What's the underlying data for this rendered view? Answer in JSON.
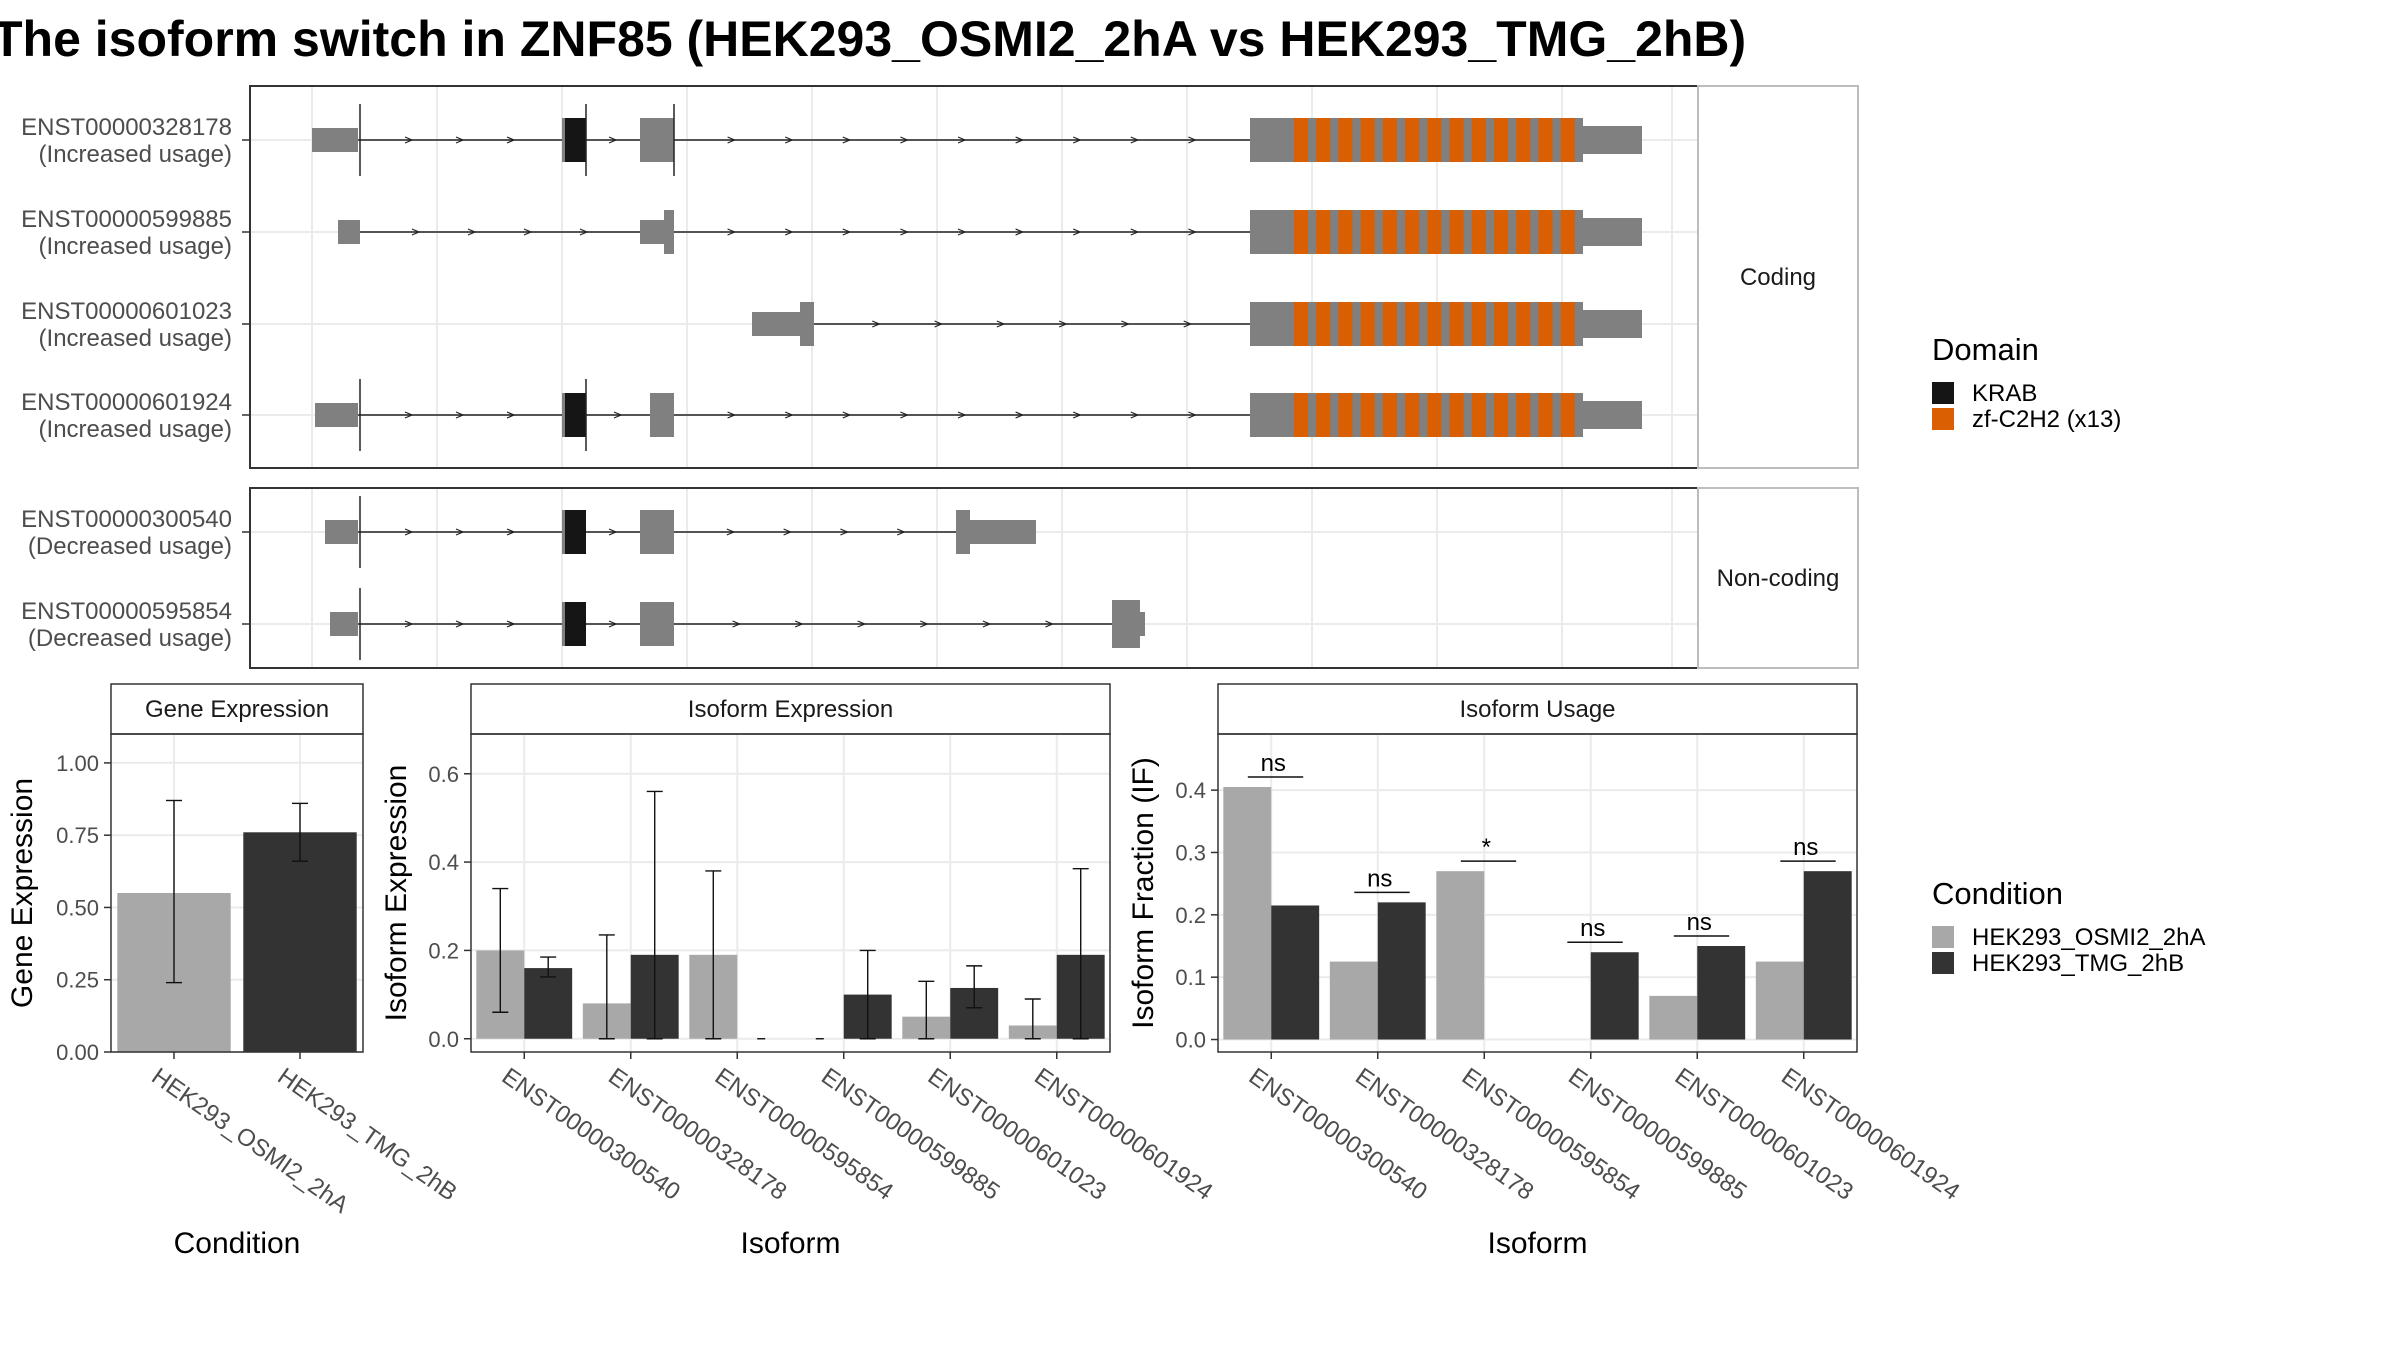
{
  "title": "The isoform switch in ZNF85 (HEK293_OSMI2_2hA vs HEK293_TMG_2hB)",
  "colors": {
    "krab": "#151515",
    "zf": "#d95f02",
    "exon": "#808080",
    "cond1": "#a8a8a8",
    "cond2": "#333333",
    "panel_border": "#333333",
    "grid": "#ebebeb",
    "strip_bg": "#ffffff"
  },
  "structure": {
    "panels": [
      {
        "label": "Coding",
        "transcripts": [
          {
            "id": "ENST00000328178",
            "usage": "(Increased usage)"
          },
          {
            "id": "ENST00000599885",
            "usage": "(Increased usage)"
          },
          {
            "id": "ENST00000601023",
            "usage": "(Increased usage)"
          },
          {
            "id": "ENST00000601924",
            "usage": "(Increased usage)"
          }
        ]
      },
      {
        "label": "Non-coding",
        "transcripts": [
          {
            "id": "ENST00000300540",
            "usage": "(Decreased usage)"
          },
          {
            "id": "ENST00000595854",
            "usage": "(Decreased usage)"
          }
        ]
      }
    ]
  },
  "legend_domain": {
    "title": "Domain",
    "items": [
      {
        "label": "KRAB",
        "color": "#151515"
      },
      {
        "label": "zf-C2H2 (x13)",
        "color": "#d95f02"
      }
    ]
  },
  "legend_condition": {
    "title": "Condition",
    "items": [
      {
        "label": "HEK293_OSMI2_2hA",
        "color": "#a8a8a8"
      },
      {
        "label": "HEK293_TMG_2hB",
        "color": "#333333"
      }
    ]
  },
  "chart_data": [
    {
      "type": "bar",
      "title": "Gene Expression",
      "xlabel": "Condition",
      "ylabel": "Gene Expression",
      "ylim": [
        0,
        1.1
      ],
      "yticks": [
        "0.00",
        "0.25",
        "0.50",
        "0.75",
        "1.00"
      ],
      "categories": [
        "HEK293_OSMI2_2hA",
        "HEK293_TMG_2hB"
      ],
      "values": [
        0.55,
        0.76
      ],
      "err_low": [
        0.24,
        0.66
      ],
      "err_high": [
        0.87,
        0.86
      ]
    },
    {
      "type": "bar",
      "title": "Isoform Expression",
      "xlabel": "Isoform",
      "ylabel": "Isoform Expression",
      "ylim": [
        -0.03,
        0.69
      ],
      "yticks": [
        "0.0",
        "0.2",
        "0.4",
        "0.6"
      ],
      "categories": [
        "ENST00000300540",
        "ENST00000328178",
        "ENST00000595854",
        "ENST00000599885",
        "ENST00000601023",
        "ENST00000601924"
      ],
      "series": [
        {
          "name": "HEK293_OSMI2_2hA",
          "values": [
            0.2,
            0.08,
            0.19,
            0.0,
            0.05,
            0.03
          ],
          "err_low": [
            0.06,
            0.0,
            0.0,
            0.0,
            0.0,
            0.0
          ],
          "err_high": [
            0.34,
            0.235,
            0.38,
            0.0,
            0.13,
            0.09
          ]
        },
        {
          "name": "HEK293_TMG_2hB",
          "values": [
            0.16,
            0.19,
            0.0,
            0.1,
            0.115,
            0.19
          ],
          "err_low": [
            0.14,
            0.0,
            0.0,
            0.0,
            0.07,
            0.0
          ],
          "err_high": [
            0.185,
            0.56,
            0.0,
            0.2,
            0.165,
            0.385
          ]
        }
      ]
    },
    {
      "type": "bar",
      "title": "Isoform Usage",
      "xlabel": "Isoform",
      "ylabel": "Isoform Fraction (IF)",
      "ylim": [
        -0.02,
        0.49
      ],
      "yticks": [
        "0.0",
        "0.1",
        "0.2",
        "0.3",
        "0.4"
      ],
      "categories": [
        "ENST00000300540",
        "ENST00000328178",
        "ENST00000595854",
        "ENST00000599885",
        "ENST00000601023",
        "ENST00000601924"
      ],
      "series": [
        {
          "name": "HEK293_OSMI2_2hA",
          "values": [
            0.405,
            0.125,
            0.27,
            0.0,
            0.07,
            0.125
          ]
        },
        {
          "name": "HEK293_TMG_2hB",
          "values": [
            0.215,
            0.22,
            0.0,
            0.14,
            0.15,
            0.27
          ]
        }
      ],
      "significance": [
        "ns",
        "ns",
        "*",
        "ns",
        "ns",
        "ns"
      ]
    }
  ]
}
